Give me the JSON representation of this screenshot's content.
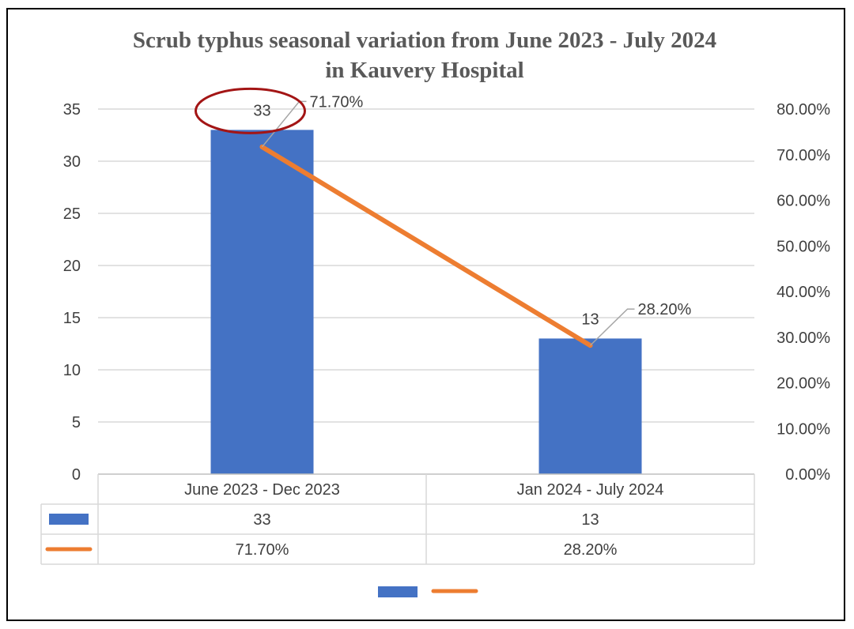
{
  "chart_data": {
    "type": "bar",
    "title": "Scrub typhus seasonal variation from June 2023 - July 2024",
    "subtitle": "in Kauvery Hospital",
    "categories": [
      "June 2023 - Dec 2023",
      "Jan 2024 - July 2024"
    ],
    "series": [
      {
        "type": "bar",
        "axis": "primary",
        "color": "#4472C4",
        "values": [
          33,
          13
        ],
        "labels": [
          "33",
          "13"
        ]
      },
      {
        "type": "line",
        "axis": "secondary",
        "color": "#ED7D31",
        "values": [
          71.7,
          28.2
        ],
        "labels": [
          "71.70%",
          "28.20%"
        ]
      }
    ],
    "y_left": {
      "min": 0,
      "max": 35,
      "step": 5,
      "ticks": [
        "0",
        "5",
        "10",
        "15",
        "20",
        "25",
        "30",
        "35"
      ]
    },
    "y_right": {
      "min": 0,
      "max": 80,
      "step": 10,
      "ticks": [
        "0.00%",
        "10.00%",
        "20.00%",
        "30.00%",
        "40.00%",
        "50.00%",
        "60.00%",
        "70.00%",
        "80.00%"
      ]
    },
    "grid": true,
    "data_table": true,
    "legend": "bottom",
    "annotation": {
      "type": "ellipse",
      "color": "#A31515",
      "target": "33"
    }
  }
}
